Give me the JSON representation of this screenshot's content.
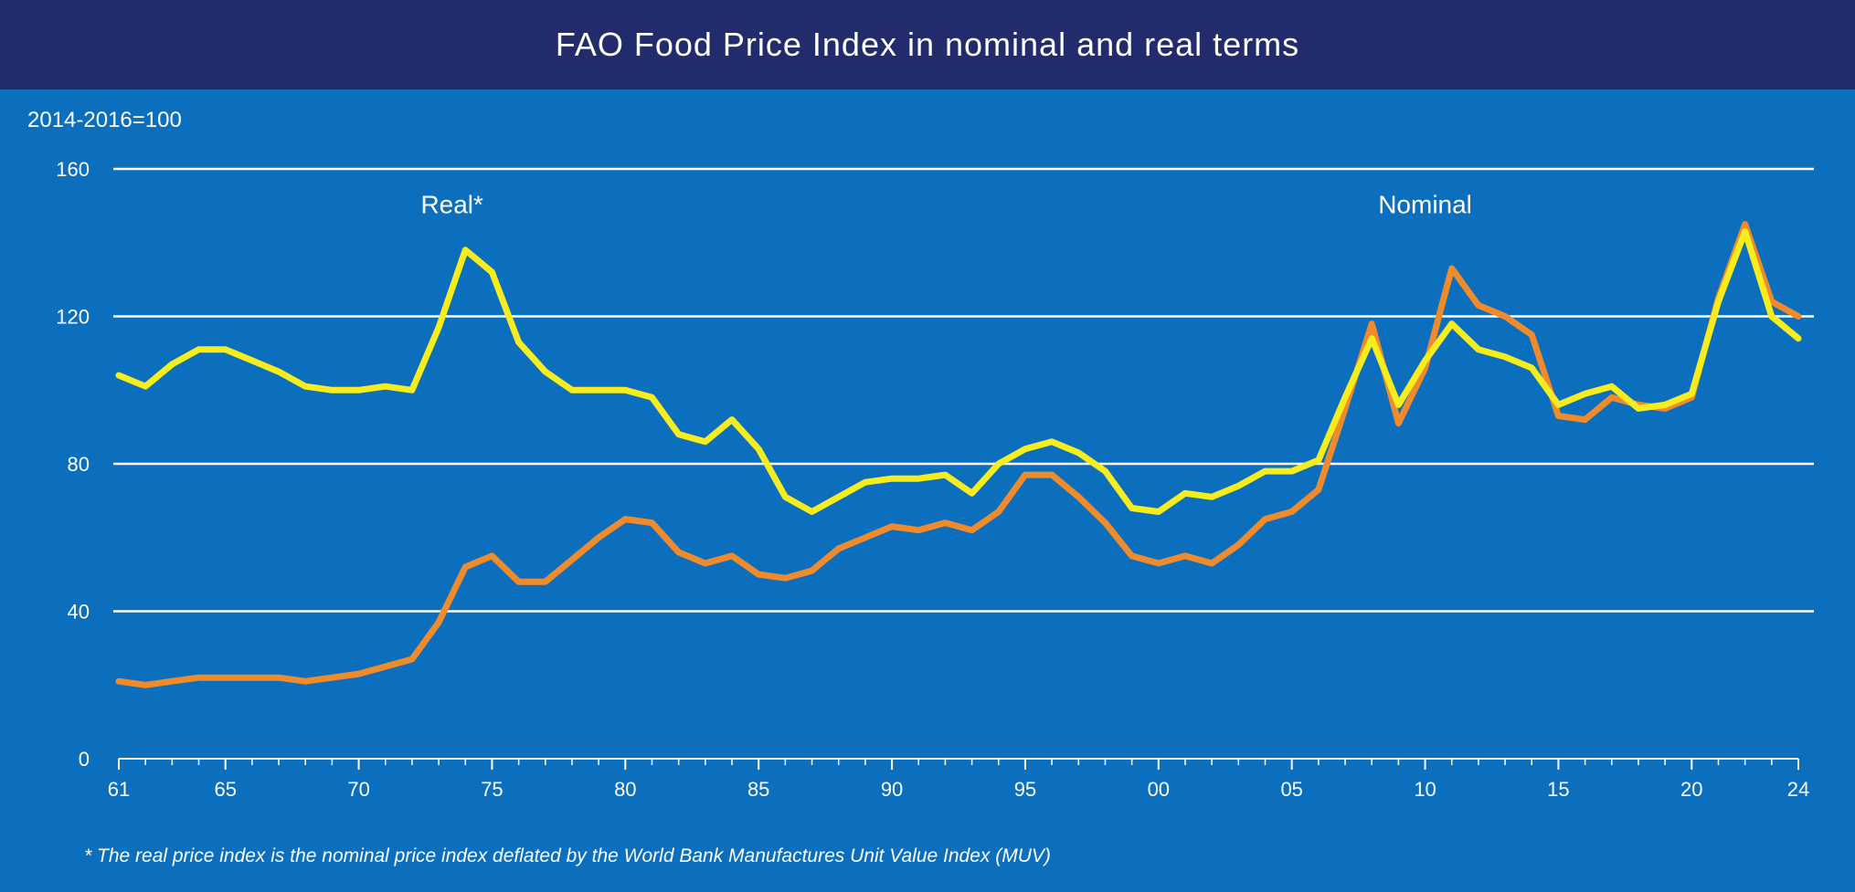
{
  "chart_data": {
    "type": "line",
    "title": "FAO Food Price Index in nominal and real terms",
    "ylabel": "2014-2016=100",
    "xlabel": "",
    "ylim": [
      0,
      160
    ],
    "yticks": [
      0,
      40,
      80,
      120,
      160
    ],
    "grid": true,
    "x": [
      1961,
      1962,
      1963,
      1964,
      1965,
      1966,
      1967,
      1968,
      1969,
      1970,
      1971,
      1972,
      1973,
      1974,
      1975,
      1976,
      1977,
      1978,
      1979,
      1980,
      1981,
      1982,
      1983,
      1984,
      1985,
      1986,
      1987,
      1988,
      1989,
      1990,
      1991,
      1992,
      1993,
      1994,
      1995,
      1996,
      1997,
      1998,
      1999,
      2000,
      2001,
      2002,
      2003,
      2004,
      2005,
      2006,
      2007,
      2008,
      2009,
      2010,
      2011,
      2012,
      2013,
      2014,
      2015,
      2016,
      2017,
      2018,
      2019,
      2020,
      2021,
      2022,
      2023,
      2024
    ],
    "xticks": [
      1961,
      1965,
      1970,
      1975,
      1980,
      1985,
      1990,
      1995,
      2000,
      2005,
      2010,
      2015,
      2020,
      2024
    ],
    "xtick_labels": [
      "61",
      "65",
      "70",
      "75",
      "80",
      "85",
      "90",
      "95",
      "00",
      "05",
      "10",
      "15",
      "20",
      "24"
    ],
    "series": [
      {
        "name": "Real*",
        "color": "#f7ec1c",
        "values": [
          104,
          101,
          107,
          111,
          111,
          108,
          105,
          101,
          100,
          100,
          101,
          100,
          117,
          138,
          132,
          113,
          105,
          100,
          100,
          100,
          98,
          88,
          86,
          92,
          84,
          71,
          67,
          71,
          75,
          76,
          76,
          77,
          72,
          80,
          84,
          86,
          83,
          78,
          68,
          67,
          72,
          71,
          74,
          78,
          78,
          81,
          98,
          114,
          96,
          108,
          118,
          111,
          109,
          106,
          96,
          99,
          101,
          95,
          96,
          99,
          124,
          143,
          120,
          114
        ],
        "annotation": "Real*"
      },
      {
        "name": "Nominal",
        "color": "#f08b2c",
        "values": [
          21,
          20,
          21,
          22,
          22,
          22,
          22,
          21,
          22,
          23,
          25,
          27,
          37,
          52,
          55,
          48,
          48,
          54,
          60,
          65,
          64,
          56,
          53,
          55,
          50,
          49,
          51,
          57,
          60,
          63,
          62,
          64,
          62,
          67,
          77,
          77,
          71,
          64,
          55,
          53,
          55,
          53,
          58,
          65,
          67,
          73,
          95,
          118,
          91,
          106,
          133,
          123,
          120,
          115,
          93,
          92,
          98,
          96,
          95,
          98,
          125,
          145,
          124,
          120
        ],
        "annotation": "Nominal"
      }
    ],
    "footnote": "* The real price index is the nominal price index deflated by the World Bank Manufactures Unit Value Index (MUV)"
  }
}
